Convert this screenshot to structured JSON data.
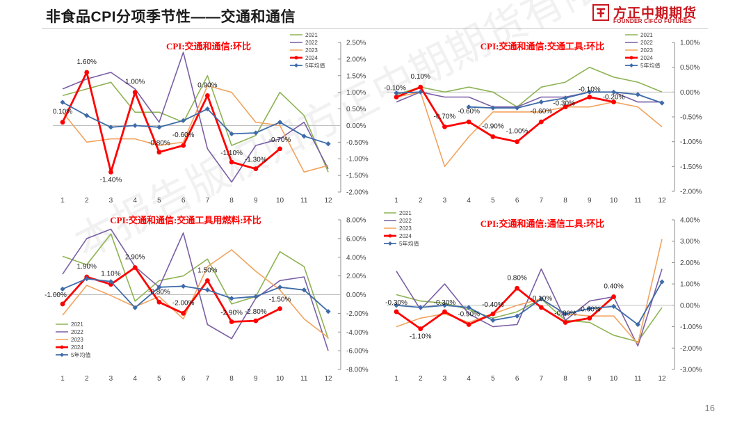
{
  "page": {
    "title": "非食品CPI分项季节性——交通和通信",
    "page_number": "16",
    "watermark": "本报告版权归方正中期期货有限公司所有"
  },
  "brand": {
    "name_cn": "方正中期期货",
    "name_en": "FOUNDER CIFCO FUTURES",
    "color": "#c8161d"
  },
  "series_style": {
    "2021": {
      "color": "#8db353",
      "width": 1.6,
      "marker": "none"
    },
    "2022": {
      "color": "#7a5fa5",
      "width": 1.6,
      "marker": "none"
    },
    "2023": {
      "color": "#f2a35e",
      "width": 1.6,
      "marker": "none"
    },
    "2024": {
      "color": "#ff0000",
      "width": 2.8,
      "marker": "circle"
    },
    "5年均值": {
      "color": "#3e6ba8",
      "width": 1.8,
      "marker": "diamond"
    }
  },
  "chart_data": [
    {
      "type": "line",
      "title": "CPI:交通和通信:环比",
      "x": [
        "1",
        "2",
        "3",
        "4",
        "5",
        "6",
        "7",
        "8",
        "9",
        "10",
        "11",
        "12"
      ],
      "ylim": [
        -2.0,
        2.5
      ],
      "yticks": [
        2.5,
        2.0,
        1.5,
        1.0,
        0.5,
        0.0,
        -0.5,
        -1.0,
        -1.5,
        -2.0
      ],
      "ytick_labels": [
        "2.50%",
        "2.00%",
        "1.50%",
        "1.00%",
        "0.50%",
        "0.00%",
        "-0.50%",
        "-1.00%",
        "-1.50%",
        "-2.00%"
      ],
      "legend": "top-right",
      "grid": false,
      "series": [
        {
          "name": "2021",
          "values": [
            0.9,
            1.1,
            1.3,
            0.4,
            0.4,
            0.1,
            1.5,
            -0.6,
            -0.3,
            1.0,
            0.3,
            -1.4
          ]
        },
        {
          "name": "2022",
          "values": [
            1.1,
            1.4,
            1.6,
            1.1,
            0.1,
            2.2,
            -0.7,
            -1.7,
            -0.6,
            -0.4,
            0.1,
            -1.3
          ]
        },
        {
          "name": "2023",
          "values": [
            0.4,
            -0.5,
            -0.4,
            -0.4,
            -0.6,
            -0.5,
            1.2,
            1.0,
            0.1,
            0.0,
            -1.4,
            -1.2
          ]
        },
        {
          "name": "2024",
          "values": [
            0.1,
            1.6,
            -1.4,
            1.0,
            -0.8,
            -0.6,
            0.9,
            -1.1,
            -1.3,
            -0.7,
            null,
            null
          ]
        },
        {
          "name": "5年均值",
          "values": [
            0.7,
            0.3,
            -0.05,
            0.0,
            -0.05,
            0.15,
            0.5,
            -0.25,
            -0.22,
            0.1,
            -0.32,
            -0.55
          ]
        }
      ],
      "labels_2024": [
        "0.10%",
        "1.60%",
        "-1.40%",
        "1.00%",
        "-0.80%",
        "-0.60%",
        "0.90%",
        "-1.10%",
        "-1.30%",
        "-0.70%"
      ]
    },
    {
      "type": "line",
      "title": "CPI:交通和通信:交通工具:环比",
      "x": [
        "1",
        "2",
        "3",
        "4",
        "5",
        "6",
        "7",
        "8",
        "9",
        "10",
        "11",
        "12"
      ],
      "ylim": [
        -2.0,
        1.0
      ],
      "yticks": [
        1.0,
        0.5,
        0.0,
        -0.5,
        -1.0,
        -1.5,
        -2.0
      ],
      "ytick_labels": [
        "1.00%",
        "0.50%",
        "0.00%",
        "-0.50%",
        "-1.00%",
        "-1.50%",
        "-2.00%"
      ],
      "legend": "top-right",
      "grid": false,
      "series": [
        {
          "name": "2021",
          "values": [
            -0.05,
            0.1,
            0.0,
            0.1,
            0.0,
            -0.3,
            0.1,
            0.2,
            0.5,
            0.3,
            0.2,
            0.0
          ]
        },
        {
          "name": "2022",
          "values": [
            -0.2,
            0.0,
            -0.1,
            -0.1,
            -0.3,
            -0.3,
            -0.1,
            -0.1,
            0.0,
            0.0,
            -0.2,
            -0.2
          ]
        },
        {
          "name": "2023",
          "values": [
            -0.1,
            0.0,
            -1.5,
            -0.9,
            -0.4,
            -0.4,
            -0.4,
            -0.3,
            -0.3,
            -0.2,
            -0.3,
            -0.7
          ]
        },
        {
          "name": "2024",
          "values": [
            -0.1,
            0.1,
            -0.7,
            -0.6,
            -0.9,
            -1.0,
            -0.6,
            -0.3,
            -0.1,
            -0.2,
            null,
            null
          ]
        },
        {
          "name": "5年均值",
          "values": [
            -0.02,
            0.0,
            null,
            -0.3,
            -0.32,
            -0.32,
            -0.2,
            -0.12,
            0.0,
            0.0,
            -0.05,
            -0.22
          ]
        }
      ],
      "labels_2024": [
        "-0.10%",
        "0.10%",
        "-0.70%",
        "-0.60%",
        "-0.90%",
        "-1.00%",
        "-0.60%",
        "-0.30%",
        "-0.10%",
        "-0.20%"
      ]
    },
    {
      "type": "line",
      "title": "CPI:交通和通信:交通工具用燃料:环比",
      "x": [
        "1",
        "2",
        "3",
        "4",
        "5",
        "6",
        "7",
        "8",
        "9",
        "10",
        "11",
        "12"
      ],
      "ylim": [
        -8.0,
        8.0
      ],
      "yticks": [
        8,
        6,
        4,
        2,
        0,
        -2,
        -4,
        -6,
        -8
      ],
      "ytick_labels": [
        "8.00%",
        "6.00%",
        "4.00%",
        "2.00%",
        "0.00%",
        "-2.00%",
        "-4.00%",
        "-6.00%",
        "-8.00%"
      ],
      "legend": "bottom-left",
      "grid": false,
      "series": [
        {
          "name": "2021",
          "values": [
            4.1,
            3.2,
            6.5,
            -0.7,
            1.5,
            2.0,
            3.8,
            -1.0,
            -0.2,
            4.6,
            3.0,
            -4.7
          ]
        },
        {
          "name": "2022",
          "values": [
            2.2,
            6.0,
            7.0,
            3.0,
            0.8,
            6.6,
            -3.2,
            -4.7,
            -0.4,
            1.5,
            1.9,
            -6.0
          ]
        },
        {
          "name": "2023",
          "values": [
            -2.2,
            1.0,
            -0.1,
            -1.3,
            -0.2,
            -2.6,
            3.0,
            4.8,
            2.5,
            0.5,
            -2.6,
            -4.6
          ]
        },
        {
          "name": "2024",
          "values": [
            -1.0,
            1.9,
            1.1,
            2.9,
            -0.8,
            -2.0,
            1.5,
            -2.9,
            -2.8,
            -1.5,
            null,
            null
          ]
        },
        {
          "name": "5年均值",
          "values": [
            0.6,
            1.7,
            1.4,
            -1.4,
            0.8,
            0.9,
            0.5,
            -0.4,
            -0.2,
            0.8,
            0.5,
            -1.8
          ]
        }
      ],
      "labels_2024": [
        "-1.00%",
        "1.90%",
        "1.10%",
        "2.90%",
        "-0.80%",
        "-2.00%",
        "1.50%",
        "-2.90%",
        "-2.80%",
        "-1.50%"
      ]
    },
    {
      "type": "line",
      "title": "CPI:交通和通信:通信工具:环比",
      "x": [
        "1",
        "2",
        "3",
        "4",
        "5",
        "6",
        "7",
        "8",
        "9",
        "10",
        "11",
        "12"
      ],
      "ylim": [
        -3.0,
        4.0
      ],
      "yticks": [
        4,
        3,
        2,
        1,
        0,
        -1,
        -2,
        -3
      ],
      "ytick_labels": [
        "4.00%",
        "3.00%",
        "2.00%",
        "1.00%",
        "0.00%",
        "-1.00%",
        "-2.00%",
        "-3.00%"
      ],
      "legend": "top-left",
      "grid": false,
      "series": [
        {
          "name": "2021",
          "values": [
            0.5,
            0.2,
            0.1,
            -0.2,
            -0.6,
            -0.3,
            0.3,
            -0.7,
            -0.8,
            -1.4,
            -1.7,
            -0.1
          ]
        },
        {
          "name": "2022",
          "values": [
            1.6,
            -0.2,
            1.0,
            -0.4,
            -1.0,
            -0.9,
            1.7,
            -0.7,
            0.2,
            0.4,
            -1.9,
            1.7
          ]
        },
        {
          "name": "2023",
          "values": [
            -1.0,
            -0.6,
            -0.4,
            -0.8,
            -0.4,
            0.0,
            0.3,
            -0.4,
            -0.5,
            -0.5,
            -1.8,
            3.1
          ]
        },
        {
          "name": "2024",
          "values": [
            -0.3,
            -1.1,
            -0.3,
            -0.9,
            -0.4,
            0.8,
            -0.1,
            -0.8,
            -0.6,
            0.4,
            null,
            null
          ]
        },
        {
          "name": "5年均值",
          "values": [
            0.0,
            -0.1,
            0.0,
            -0.1,
            -0.7,
            -0.5,
            0.3,
            -0.4,
            -0.15,
            -0.05,
            -0.9,
            1.1
          ]
        }
      ],
      "labels_2024": [
        "-0.30%",
        "-1.10%",
        "-0.30%",
        "-0.90%",
        "-0.40%",
        "0.80%",
        "-0.10%",
        "-0.80%",
        "-0.60%",
        "0.40%"
      ]
    }
  ]
}
